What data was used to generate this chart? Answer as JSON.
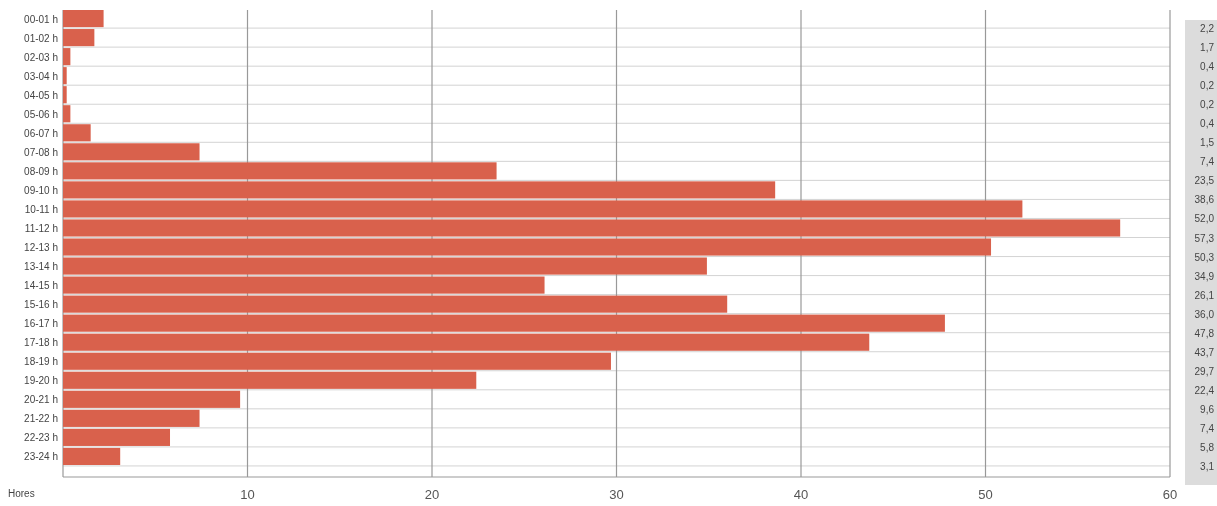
{
  "chart_data": {
    "type": "bar",
    "orientation": "horizontal",
    "ylabel": "Hores",
    "categories": [
      "00-01 h",
      "01-02 h",
      "02-03 h",
      "03-04 h",
      "04-05 h",
      "05-06 h",
      "06-07 h",
      "07-08 h",
      "08-09 h",
      "09-10 h",
      "10-11 h",
      "11-12 h",
      "12-13 h",
      "13-14 h",
      "14-15 h",
      "15-16 h",
      "16-17 h",
      "17-18 h",
      "18-19 h",
      "19-20 h",
      "20-21 h",
      "21-22 h",
      "22-23 h",
      "23-24 h"
    ],
    "values": [
      2.2,
      1.7,
      0.4,
      0.2,
      0.2,
      0.4,
      1.5,
      7.4,
      23.5,
      38.6,
      52.0,
      57.3,
      50.3,
      34.9,
      26.1,
      36.0,
      47.8,
      43.7,
      29.7,
      22.4,
      9.6,
      7.4,
      5.8,
      3.1
    ],
    "value_labels": [
      "2,2",
      "1,7",
      "0,4",
      "0,2",
      "0,2",
      "0,4",
      "1,5",
      "7,4",
      "23,5",
      "38,6",
      "52,0",
      "57,3",
      "50,3",
      "34,9",
      "26,1",
      "36,0",
      "47,8",
      "43,7",
      "29,7",
      "22,4",
      "9,6",
      "7,4",
      "5,8",
      "3,1"
    ],
    "color": "#d9614c",
    "xlim": [
      0,
      60
    ],
    "xticks": [
      {
        "value": 0,
        "label": null
      },
      10,
      20,
      30,
      40,
      50,
      60
    ],
    "grid": true
  }
}
